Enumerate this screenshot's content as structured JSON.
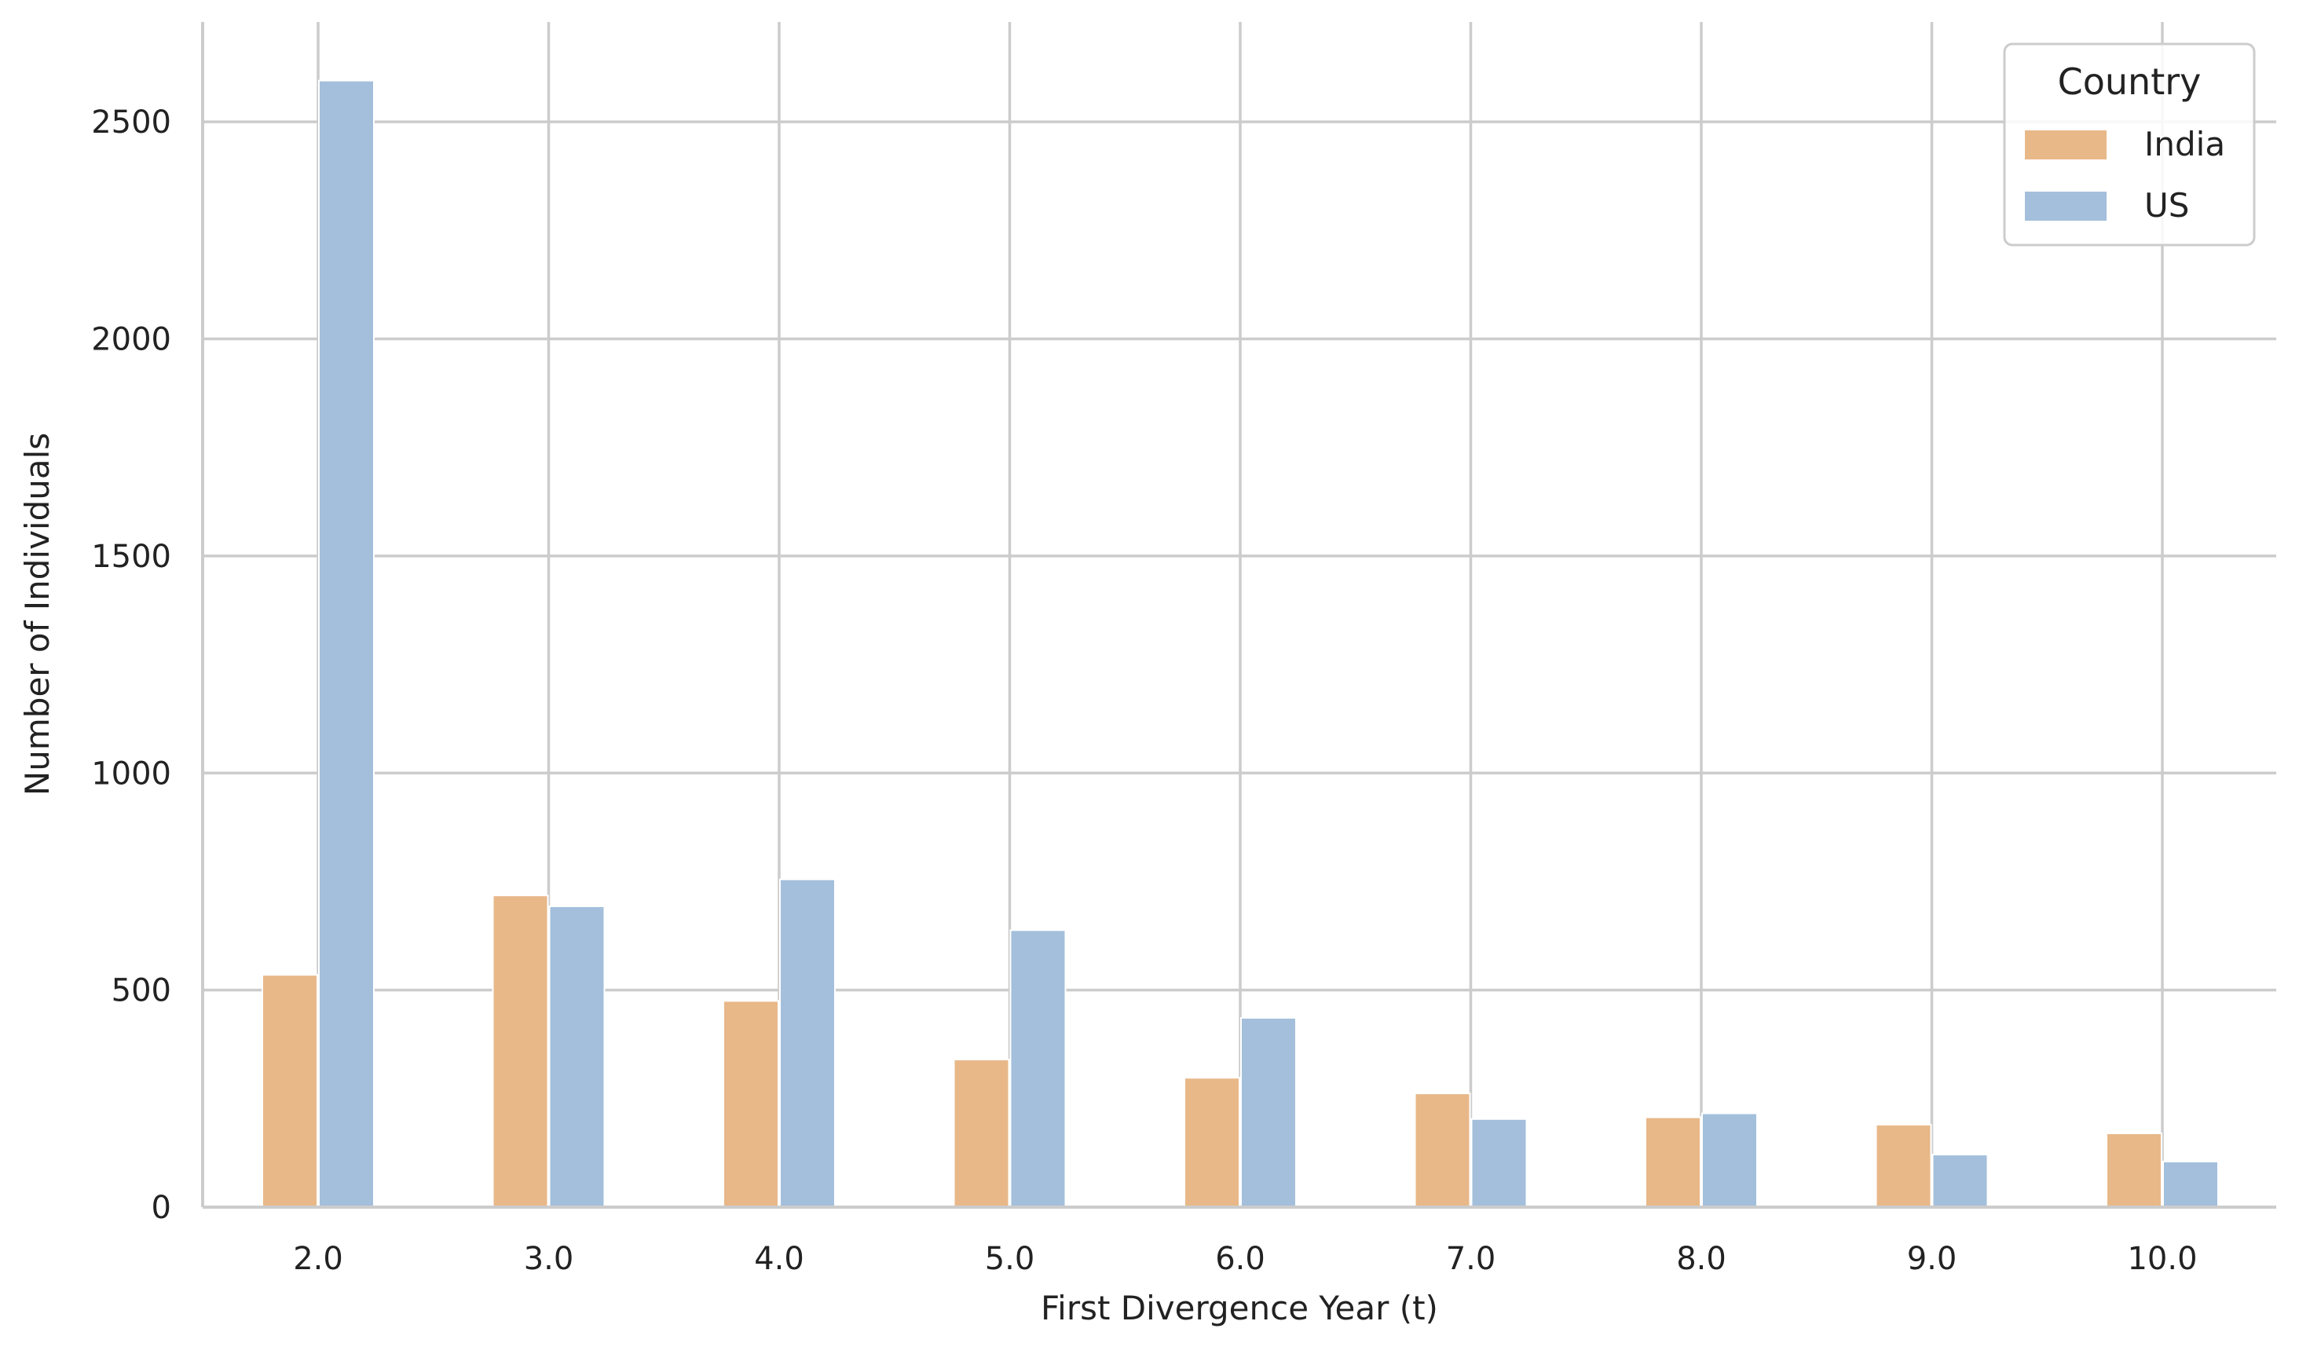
{
  "chart_data": {
    "type": "bar",
    "xlabel": "First Divergence Year (t)",
    "ylabel": "Number of Individuals",
    "categories": [
      "2.0",
      "3.0",
      "4.0",
      "5.0",
      "6.0",
      "7.0",
      "8.0",
      "9.0",
      "10.0"
    ],
    "series": [
      {
        "name": "India",
        "color": "#e8b889",
        "values": [
          535,
          718,
          475,
          340,
          298,
          262,
          207,
          190,
          170
        ]
      },
      {
        "name": "US",
        "color": "#a3bfdb",
        "values": [
          2595,
          693,
          755,
          638,
          436,
          203,
          216,
          121,
          105
        ]
      }
    ],
    "ylim": [
      0,
      2730
    ],
    "yticks": [
      0,
      500,
      1000,
      1500,
      2000,
      2500
    ],
    "grid": true,
    "legend": {
      "title": "Country",
      "placement": "top-right"
    }
  }
}
